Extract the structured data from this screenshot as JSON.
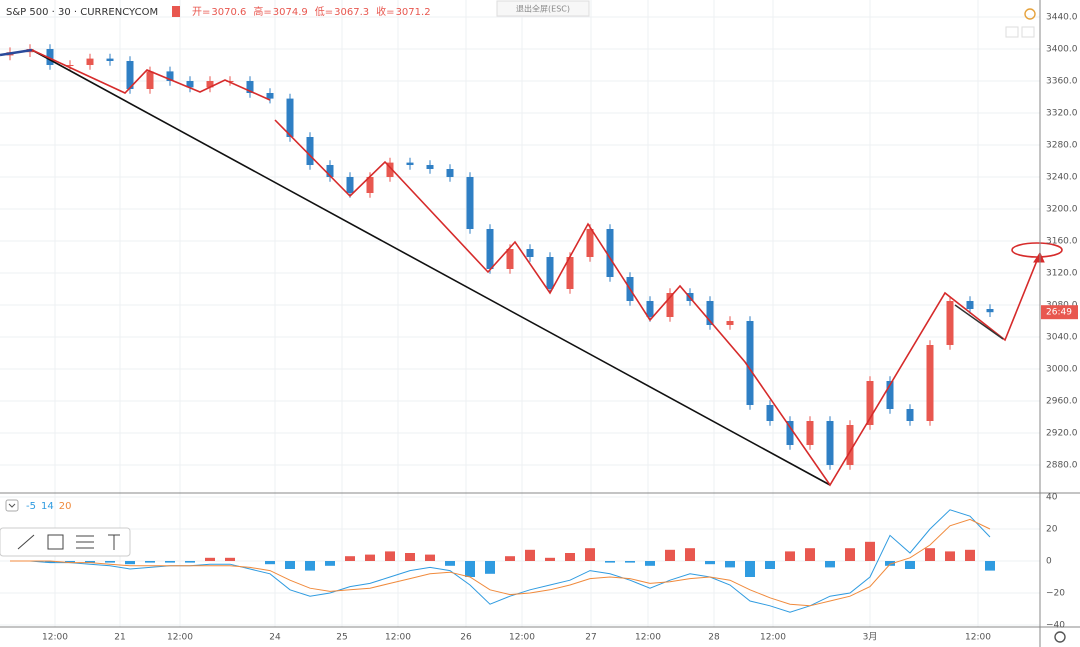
{
  "chart_data": {
    "type": "candlestick",
    "title": "S&P 500 · 30 · CURRENCYCOM",
    "exit_button": "退出全屏(ESC)",
    "ohlc": [
      {
        "label": "开=",
        "value": 3070.6
      },
      {
        "label": "高=",
        "value": 3074.9
      },
      {
        "label": "低=",
        "value": 3067.3
      },
      {
        "label": "收=",
        "value": 3071.2
      }
    ],
    "countdown": "26:49",
    "up_color": "#e8574f",
    "down_color": "#2f7fc4",
    "x": [
      1,
      3,
      5,
      7,
      9,
      11,
      13,
      15,
      17,
      19,
      21,
      23,
      25,
      27,
      29,
      31,
      33,
      35,
      37,
      39,
      41,
      43,
      45,
      47,
      49,
      51,
      53,
      55,
      57,
      59,
      61,
      63,
      65,
      67,
      69,
      71,
      73,
      75,
      77,
      79,
      81,
      83,
      85,
      87,
      89,
      91,
      93,
      95,
      97,
      99
    ],
    "open": [
      3392,
      3396,
      3400,
      3380,
      3380,
      3388,
      3385,
      3350,
      3372,
      3360,
      3352,
      3360,
      3360,
      3345,
      3338,
      3290,
      3255,
      3240,
      3220,
      3240,
      3258,
      3255,
      3250,
      3240,
      3175,
      3125,
      3150,
      3140,
      3100,
      3140,
      3175,
      3115,
      3085,
      3065,
      3095,
      3085,
      3055,
      3060,
      2955,
      2935,
      2905,
      2935,
      2880,
      2930,
      2985,
      2950,
      2935,
      3030,
      3085,
      3075
    ],
    "high": [
      3402,
      3406,
      3406,
      3386,
      3394,
      3394,
      3391,
      3378,
      3378,
      3366,
      3366,
      3366,
      3366,
      3351,
      3344,
      3296,
      3261,
      3246,
      3246,
      3264,
      3264,
      3261,
      3256,
      3246,
      3181,
      3156,
      3156,
      3146,
      3146,
      3181,
      3181,
      3121,
      3091,
      3101,
      3101,
      3091,
      3066,
      3066,
      2961,
      2941,
      2941,
      2941,
      2936,
      2991,
      2991,
      2956,
      3036,
      3091,
      3091,
      3081
    ],
    "low": [
      3386,
      3390,
      3374,
      3374,
      3374,
      3379,
      3344,
      3344,
      3354,
      3346,
      3346,
      3354,
      3339,
      3332,
      3284,
      3249,
      3234,
      3214,
      3214,
      3234,
      3249,
      3244,
      3234,
      3169,
      3119,
      3119,
      3134,
      3094,
      3094,
      3134,
      3109,
      3079,
      3059,
      3059,
      3079,
      3049,
      3049,
      2949,
      2929,
      2899,
      2899,
      2874,
      2874,
      2924,
      2944,
      2929,
      2929,
      3024,
      3069,
      3065
    ],
    "close": [
      3396,
      3400,
      3380,
      3380,
      3388,
      3385,
      3350,
      3372,
      3360,
      3352,
      3360,
      3360,
      3345,
      3338,
      3290,
      3255,
      3240,
      3220,
      3240,
      3258,
      3255,
      3250,
      3240,
      3175,
      3125,
      3150,
      3140,
      3100,
      3140,
      3175,
      3115,
      3085,
      3065,
      3095,
      3085,
      3055,
      3060,
      2955,
      2935,
      2905,
      2935,
      2880,
      2930,
      2985,
      2950,
      2935,
      3030,
      3085,
      3075,
      3071
    ],
    "xlim": [
      0,
      104
    ],
    "xticks": [
      {
        "value": 5.5,
        "label": "12:00"
      },
      {
        "value": 12,
        "label": "21"
      },
      {
        "value": 18,
        "label": "12:00"
      },
      {
        "value": 27.5,
        "label": "24"
      },
      {
        "value": 34.2,
        "label": "25"
      },
      {
        "value": 39.8,
        "label": "12:00"
      },
      {
        "value": 46.6,
        "label": "26"
      },
      {
        "value": 52.2,
        "label": "12:00"
      },
      {
        "value": 59.1,
        "label": "27"
      },
      {
        "value": 64.8,
        "label": "12:00"
      },
      {
        "value": 71.4,
        "label": "28"
      },
      {
        "value": 77.3,
        "label": "12:00"
      },
      {
        "value": 87,
        "label": "3月"
      },
      {
        "value": 97.8,
        "label": "12:00"
      }
    ],
    "ylim": [
      2845,
      3461.25
    ],
    "yticks": [
      {
        "value": 3440,
        "label": "3440.0"
      },
      {
        "value": 3400,
        "label": "3400.0"
      },
      {
        "value": 3360,
        "label": "3360.0"
      },
      {
        "value": 3320,
        "label": "3320.0"
      },
      {
        "value": 3280,
        "label": "3280.0"
      },
      {
        "value": 3240,
        "label": "3240.0"
      },
      {
        "value": 3200,
        "label": "3200.0"
      },
      {
        "value": 3160,
        "label": "3160.0"
      },
      {
        "value": 3120,
        "label": "3120.0"
      },
      {
        "value": 3080,
        "label": "3080.0"
      },
      {
        "value": 3040,
        "label": "3040.0"
      },
      {
        "value": 3000,
        "label": "3000.0"
      },
      {
        "value": 2960,
        "label": "2960.0"
      },
      {
        "value": 2920,
        "label": "2920.0"
      },
      {
        "value": 2880,
        "label": "2880.0"
      }
    ],
    "grid": true,
    "indicator": {
      "params": [
        {
          "value": -5,
          "color": "#2f9be0"
        },
        {
          "value": 14,
          "color": "#2f9be0"
        },
        {
          "value": 20,
          "color": "#f08a3c"
        }
      ],
      "ylim": [
        -41.25,
        42.5
      ],
      "yticks": [
        40,
        20,
        0,
        {
          "value": -20,
          "label": "−20"
        },
        {
          "value": -40,
          "label": "−40"
        }
      ],
      "histogram": [
        0,
        0,
        -1,
        -1,
        -1,
        -1,
        -2,
        -1,
        -1,
        -1,
        2,
        2,
        0,
        -2,
        -5,
        -6,
        -3,
        3,
        4,
        6,
        5,
        4,
        -3,
        -10,
        -8,
        3,
        7,
        2,
        5,
        8,
        -1,
        -1,
        -3,
        7,
        8,
        -2,
        -4,
        -10,
        -5,
        6,
        8,
        -4,
        8,
        12,
        -3,
        -5,
        8,
        6,
        7,
        -6
      ],
      "series": [
        {
          "values": [
            0,
            0,
            -1,
            -1,
            -2,
            -3,
            -5,
            -4,
            -3,
            -3,
            -2,
            -2,
            -5,
            -8,
            -18,
            -22,
            -20,
            -16,
            -14,
            -10,
            -6,
            -4,
            -6,
            -15,
            -27,
            -22,
            -18,
            -15,
            -12,
            -6,
            -8,
            -12,
            -17,
            -12,
            -8,
            -10,
            -15,
            -25,
            -28,
            -32,
            -28,
            -22,
            -20,
            -10,
            16,
            5,
            20,
            32,
            28,
            15
          ],
          "color": "#2f9be0"
        },
        {
          "values": [
            0,
            0,
            0,
            -1,
            -1,
            -2,
            -3,
            -3,
            -3,
            -3,
            -3,
            -3,
            -4,
            -6,
            -12,
            -17,
            -19,
            -18,
            -17,
            -14,
            -11,
            -8,
            -7,
            -10,
            -18,
            -21,
            -20,
            -18,
            -15,
            -11,
            -10,
            -11,
            -14,
            -13,
            -11,
            -10,
            -12,
            -18,
            -23,
            -27,
            -28,
            -25,
            -22,
            -16,
            -2,
            2,
            10,
            22,
            26,
            20
          ],
          "color": "#f08a3c"
        }
      ]
    }
  }
}
